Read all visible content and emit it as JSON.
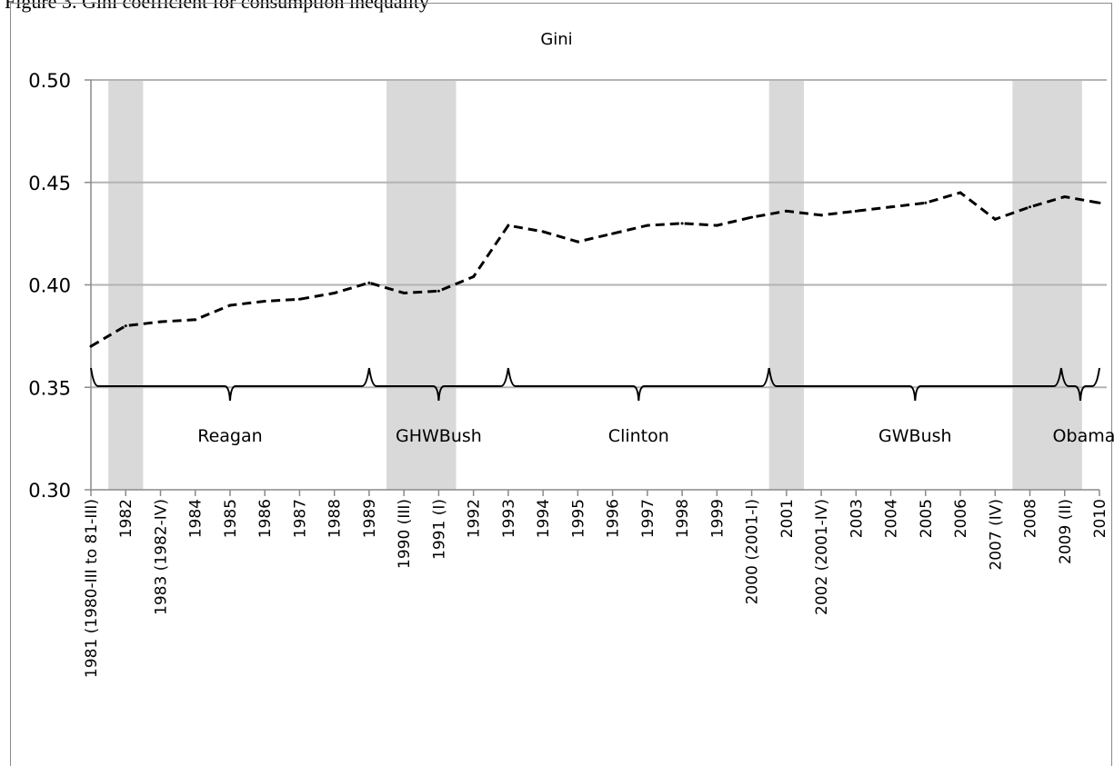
{
  "header_fragment": "Figure 3. Gini coefficient for consumption inequality",
  "chart_data": {
    "type": "line",
    "title": "Gini",
    "xlabel": "",
    "ylabel": "",
    "ylim": [
      0.3,
      0.5
    ],
    "yticks": [
      "0.50",
      "0.45",
      "0.40",
      "0.35",
      "0.30"
    ],
    "grid": true,
    "categories": [
      "1981 (1980-III to 81-III)",
      "1982",
      "1983 (1982-IV)",
      "1984",
      "1985",
      "1986",
      "1987",
      "1988",
      "1989",
      "1990 (III)",
      "1991 (I)",
      "1992",
      "1993",
      "1994",
      "1995",
      "1996",
      "1997",
      "1998",
      "1999",
      "2000 (2001-I)",
      "2001",
      "2002 (2001-IV)",
      "2003",
      "2004",
      "2005",
      "2006",
      "2007 (IV)",
      "2008",
      "2009 (II)",
      "2010"
    ],
    "series": [
      {
        "values": [
          0.37,
          0.38,
          0.382,
          0.383,
          0.39,
          0.392,
          0.393,
          0.396,
          0.401,
          0.396,
          0.397,
          0.404,
          0.429,
          0.426,
          0.421,
          0.425,
          0.429,
          0.43,
          0.429,
          0.433,
          0.436,
          0.434,
          0.436,
          0.438,
          0.44,
          0.445,
          0.432,
          0.438,
          0.443,
          0.44
        ],
        "style": "dashed",
        "color": "#000000"
      }
    ],
    "recession_bands": [
      {
        "from": 0.5,
        "to": 1.5
      },
      {
        "from": 8.5,
        "to": 10.5
      },
      {
        "from": 19.5,
        "to": 20.5
      },
      {
        "from": 26.5,
        "to": 28.5
      }
    ],
    "band_color": "#d9d9d9",
    "presidencies": [
      {
        "label": "Reagan",
        "from": 0,
        "to": 8
      },
      {
        "label": "GHWBush",
        "from": 8,
        "to": 12
      },
      {
        "label": "Clinton",
        "from": 12,
        "to": 19.5
      },
      {
        "label": "GWBush",
        "from": 19.5,
        "to": 27.9
      },
      {
        "label": "Obama",
        "from": 27.9,
        "to": 29
      }
    ]
  }
}
